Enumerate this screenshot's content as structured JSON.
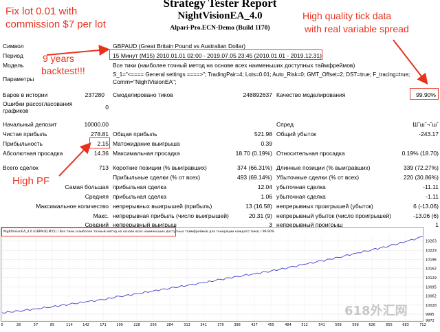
{
  "report": {
    "title": "Strategy Tester Report",
    "ea_name": "NightVisionEA_4.0",
    "server": "Alpari-Pro.ECN-Demo (Build 1170)"
  },
  "annotations": {
    "fixlot_line1": "Fix lot 0.01 with",
    "fixlot_line2": "commission $7 per lot",
    "tick_line1": "High quality tick data",
    "tick_line2": "with real variable spread",
    "years_line1": "9 years",
    "years_line2": "backtest!!!",
    "pf": "High PF"
  },
  "header_rows": [
    {
      "label": "Символ",
      "value": "GBPAUD (Great Britain Pound vs Australian Dollar)"
    },
    {
      "label": "Период",
      "value": "15 Минут (M15) 2010.01.01 02:00 - 2019.07.05 23:45 (2010.01.01 - 2019.12.31)"
    },
    {
      "label": "Модель",
      "value": "Все тики (наиболее точный метод на основе всех наименьших доступных таймфреймов)"
    },
    {
      "label": "Параметры",
      "value": "S_1=\"<==== General settings ====>\"; TradingPair=4; Lots=0.01; Auto_Risk=0; GMT_Offset=2; DST=true; F_tracing=true;"
    },
    {
      "label": "",
      "value": "Comm=\"NightVisionEA\";"
    }
  ],
  "bars": {
    "label": "Баров в истории",
    "value": "237280",
    "ticks_label": "Смоделировано тиков",
    "ticks_value": "248892637",
    "quality_label": "Качество моделирования",
    "quality_value": "99.90%"
  },
  "errors": {
    "label_line1": "Ошибки рассогласования",
    "label_line2": "графиков",
    "value": "0"
  },
  "stats": {
    "deposit_label": "Начальный депозит",
    "deposit_value": "10000.00",
    "spread_label": "Спред",
    "spread_value": "Шˆшˆ¬ˆшˆ",
    "net_label": "Чистая прибыль",
    "net_value": "278.81",
    "gross_profit_label": "Общая прибыль",
    "gross_profit_value": "521.98",
    "gross_loss_label": "Общий убыток",
    "gross_loss_value": "-243.17",
    "pf_label": "Прибыльность",
    "pf_value": "2.15",
    "payoff_label": "Матожидание выигрыша",
    "payoff_value": "0.39",
    "abs_dd_label": "Абсолютная просадка",
    "abs_dd_value": "14.36",
    "max_dd_label": "Максимальная просадка",
    "max_dd_value": "18.70 (0.19%)",
    "rel_dd_label": "Относительная просадка",
    "rel_dd_value": "0.19% (18.70)",
    "total_label": "Всего сделок",
    "total_value": "713",
    "short_label": "Короткие позиции (% выигравших)",
    "short_value": "374 (66.31%)",
    "long_label": "Длинные позиции (% выигравших)",
    "long_value": "339 (72.27%)",
    "profit_trades_label": "Прибыльные сделки (% от всех)",
    "profit_trades_value": "493 (69.14%)",
    "loss_trades_label": "Убыточные сделки (% от всех)",
    "loss_trades_value": "220 (30.86%)",
    "largest_label": "Самая большая",
    "largest_profit_label": "прибыльная сделка",
    "largest_profit_value": "12.04",
    "largest_loss_label": "убыточная сделка",
    "largest_loss_value": "-11.11",
    "average_label": "Средняя",
    "average_profit_label": "прибыльная сделка",
    "average_profit_value": "1.06",
    "average_loss_label": "убыточная сделка",
    "average_loss_value": "-1.11",
    "maxcount_label": "Максимальное количество",
    "maxcount_wins_label": "непрерывных выигрышей (прибыль)",
    "maxcount_wins_value": "13 (16.58)",
    "maxcount_losses_label": "непрерывных проигрышей (убыток)",
    "maxcount_losses_value": "6 (-13.06)",
    "max_label": "Макс.",
    "max_profit_label": "непрерывная прибыль (число выигрышей)",
    "max_profit_value": "20.31 (9)",
    "max_loss_label": "непрерывный убыток (число проигрышей)",
    "max_loss_value": "-13.06 (6)",
    "avgcons_label": "Средний",
    "avgcons_wins_label": "непрерывный выигрыш",
    "avgcons_wins_value": "3",
    "avgcons_losses_label": "непрерывный проигрыш",
    "avgcons_losses_value": "1"
  },
  "chart_caption": "NightVisionEA_4.0 (GBPAUD,M15) / Все тики (наиболее точный метод на основе всех наименьших доступных таймфреймов для генерации каждого тика) / 99.90%",
  "watermark": "618外汇网",
  "chart_data": {
    "type": "line",
    "title": "",
    "xlabel": "",
    "ylabel": "",
    "x_ticks": [
      "0",
      "28",
      "57",
      "85",
      "114",
      "142",
      "171",
      "199",
      "228",
      "256",
      "284",
      "313",
      "341",
      "370",
      "398",
      "427",
      "455",
      "484",
      "512",
      "541",
      "569",
      "598",
      "626",
      "655",
      "683",
      "712"
    ],
    "y_ticks": [
      10263,
      10229,
      10196,
      10162,
      10129,
      10095,
      10062,
      10028,
      9995,
      9972
    ],
    "ylim": [
      9972,
      10285
    ],
    "xlim": [
      0,
      712
    ],
    "series": [
      {
        "color": "#3c3ccd",
        "x": [
          0,
          28,
          57,
          85,
          114,
          142,
          171,
          199,
          228,
          256,
          284,
          313,
          341,
          370,
          398,
          427,
          455,
          484,
          512,
          541,
          569,
          598,
          626,
          655,
          683,
          712
        ],
        "values": [
          10000,
          10006,
          10014,
          10022,
          10031,
          10040,
          10048,
          10060,
          10069,
          10080,
          10090,
          10100,
          10110,
          10122,
          10133,
          10143,
          10153,
          10165,
          10178,
          10190,
          10203,
          10218,
          10231,
          10245,
          10261,
          10279
        ]
      }
    ]
  }
}
